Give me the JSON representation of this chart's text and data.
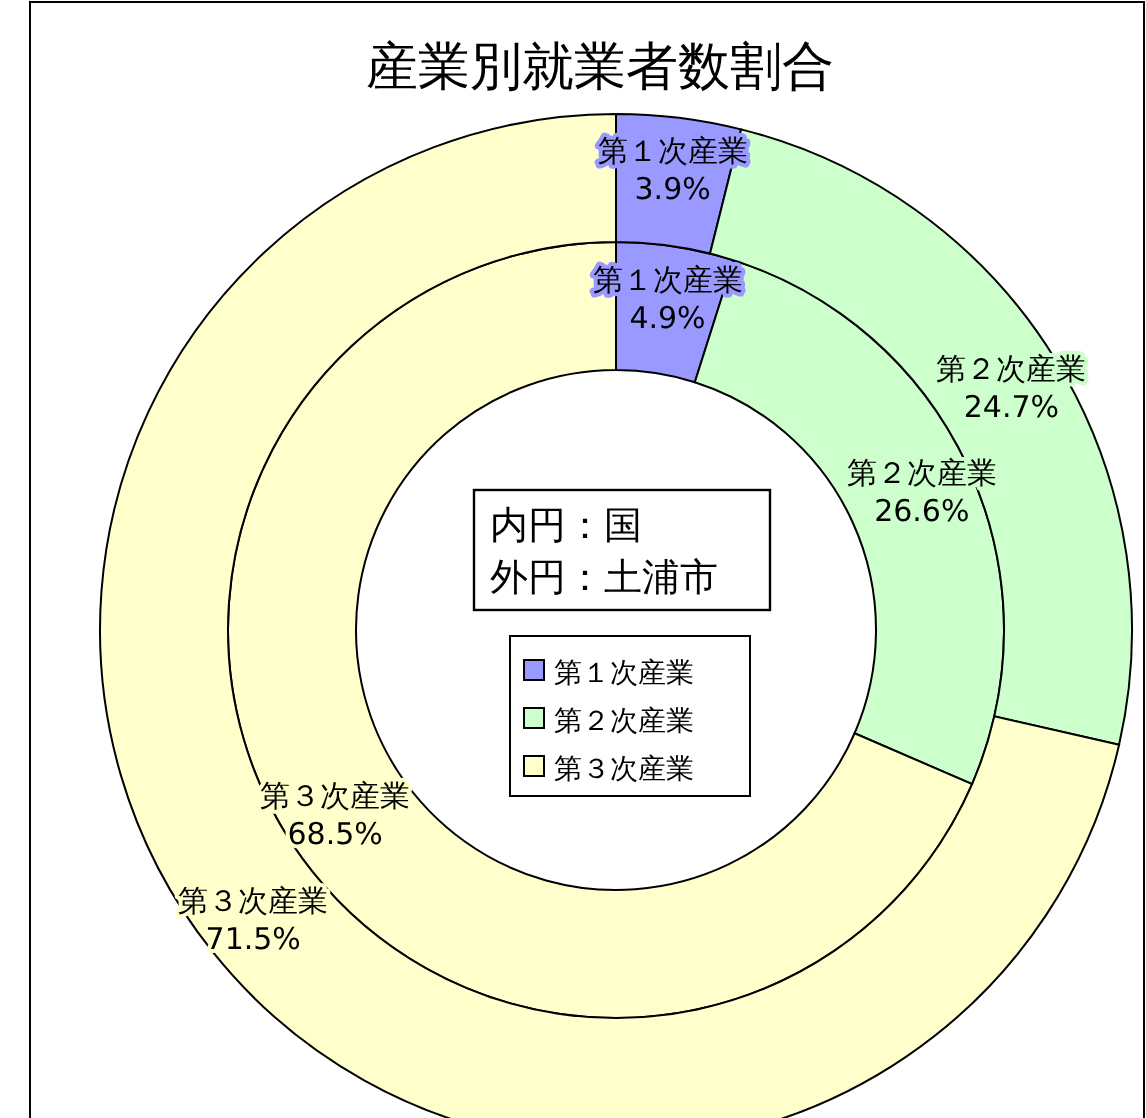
{
  "chart_data": {
    "type": "donut",
    "title": "産業別就業者数割合",
    "categories": [
      "第１次産業",
      "第２次産業",
      "第３次産業"
    ],
    "colors": [
      "#9999ff",
      "#ccffcc",
      "#ffffcc"
    ],
    "series": [
      {
        "values": [
          4.9,
          26.6,
          68.5
        ],
        "value_labels": [
          "4.9%",
          "26.6%",
          "68.5%"
        ]
      },
      {
        "values": [
          3.9,
          24.7,
          71.5
        ],
        "value_labels": [
          "3.9%",
          "24.7%",
          "71.5%"
        ]
      }
    ],
    "legend": "center",
    "annotations": [
      "内円：国",
      "外円：土浦市"
    ]
  }
}
